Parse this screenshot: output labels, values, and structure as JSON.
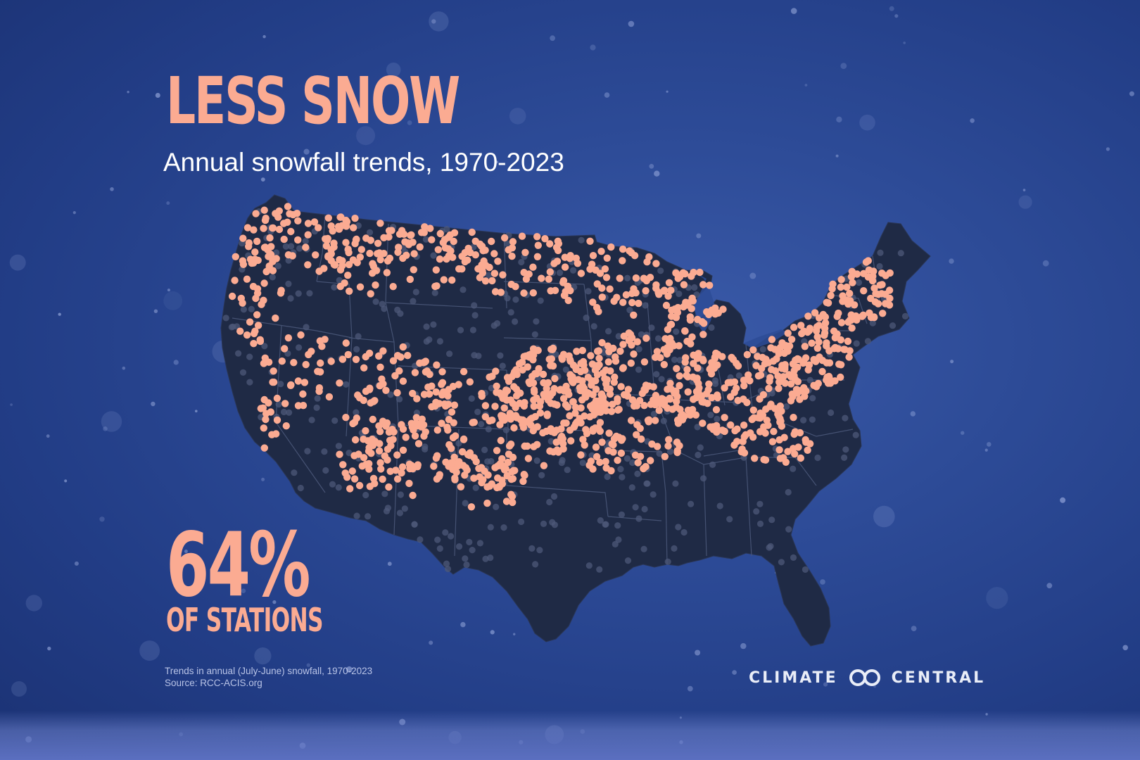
{
  "title": "LESS SNOW",
  "subtitle": "Annual snowfall trends, 1970-2023",
  "stat": {
    "value": "64%",
    "label": "OF STATIONS"
  },
  "footnote": {
    "line1": "Trends in annual (July-June) snowfall, 1970-2023",
    "line2": "Source: RCC-ACIS.org"
  },
  "logo": {
    "left": "CLIMATE",
    "right": "CENTRAL",
    "icon": "linked-rings-icon"
  },
  "colors": {
    "accent": "#fbab92",
    "land": "#1f2a45",
    "border": "#4a5778",
    "other_stations": "#4d5878",
    "background": "#2d4b97"
  },
  "map": {
    "region": "contiguous United States",
    "legend": "none",
    "marker_decreasing": "salmon dot",
    "marker_other": "gray dot"
  }
}
